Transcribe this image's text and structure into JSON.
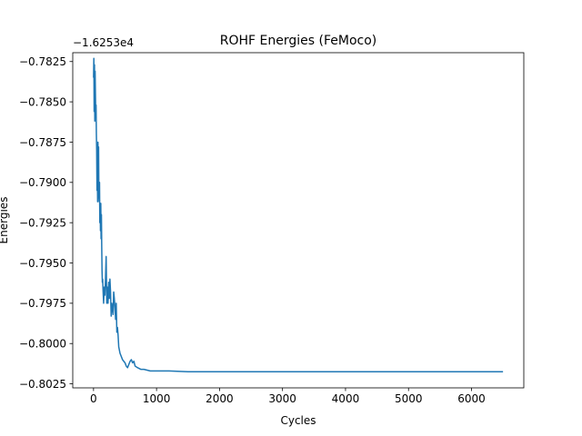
{
  "chart_data": {
    "type": "line",
    "title": "ROHF Energies (FeMoco)",
    "xlabel": "Cycles",
    "ylabel": "Energies",
    "offset_text": "−1.6253e4",
    "xlim": [
      -330,
      6830
    ],
    "ylim": [
      -0.80275,
      -0.78195
    ],
    "x_ticks": [
      0,
      1000,
      2000,
      3000,
      4000,
      5000,
      6000
    ],
    "x_tick_labels": [
      "0",
      "1000",
      "2000",
      "3000",
      "4000",
      "5000",
      "6000"
    ],
    "y_ticks": [
      -0.7825,
      -0.785,
      -0.7875,
      -0.79,
      -0.7925,
      -0.795,
      -0.7975,
      -0.8,
      -0.8025
    ],
    "y_tick_labels": [
      "−0.7825",
      "−0.7850",
      "−0.7875",
      "−0.7900",
      "−0.7925",
      "−0.7950",
      "−0.7975",
      "−0.8000",
      "−0.8025"
    ],
    "grid": false,
    "legend": "none",
    "series": [
      {
        "color": "#1f77b4",
        "x": [
          0,
          5,
          10,
          15,
          20,
          25,
          30,
          35,
          40,
          45,
          50,
          55,
          60,
          65,
          70,
          75,
          80,
          85,
          90,
          95,
          100,
          105,
          110,
          115,
          120,
          125,
          130,
          135,
          140,
          145,
          150,
          160,
          170,
          180,
          190,
          200,
          210,
          220,
          230,
          240,
          250,
          260,
          270,
          280,
          290,
          300,
          310,
          320,
          330,
          340,
          350,
          360,
          370,
          380,
          390,
          400,
          420,
          440,
          460,
          480,
          500,
          520,
          540,
          560,
          580,
          600,
          620,
          640,
          660,
          700,
          750,
          800,
          900,
          1000,
          1200,
          1500,
          2000,
          3000,
          4000,
          5000,
          6000,
          6500
        ],
        "y": [
          -0.7835,
          -0.7823,
          -0.7856,
          -0.7827,
          -0.7862,
          -0.7831,
          -0.7845,
          -0.7858,
          -0.7852,
          -0.787,
          -0.788,
          -0.7905,
          -0.789,
          -0.7912,
          -0.7875,
          -0.7895,
          -0.7878,
          -0.7908,
          -0.7912,
          -0.79,
          -0.7925,
          -0.7915,
          -0.793,
          -0.7913,
          -0.7935,
          -0.792,
          -0.794,
          -0.7955,
          -0.7962,
          -0.796,
          -0.7966,
          -0.7975,
          -0.7965,
          -0.797,
          -0.796,
          -0.7946,
          -0.7975,
          -0.7965,
          -0.7975,
          -0.7962,
          -0.7972,
          -0.796,
          -0.7968,
          -0.7983,
          -0.7975,
          -0.7978,
          -0.7982,
          -0.7968,
          -0.7972,
          -0.7978,
          -0.7985,
          -0.7975,
          -0.7993,
          -0.799,
          -0.7995,
          -0.8002,
          -0.8006,
          -0.8008,
          -0.801,
          -0.8011,
          -0.8012,
          -0.8014,
          -0.8015,
          -0.8013,
          -0.8011,
          -0.801,
          -0.8012,
          -0.8011,
          -0.8014,
          -0.8015,
          -0.8016,
          -0.8016,
          -0.8017,
          -0.8017,
          -0.8017,
          -0.80175,
          -0.80175,
          -0.80175,
          -0.80175,
          -0.80175,
          -0.80175,
          -0.80175
        ]
      }
    ]
  }
}
